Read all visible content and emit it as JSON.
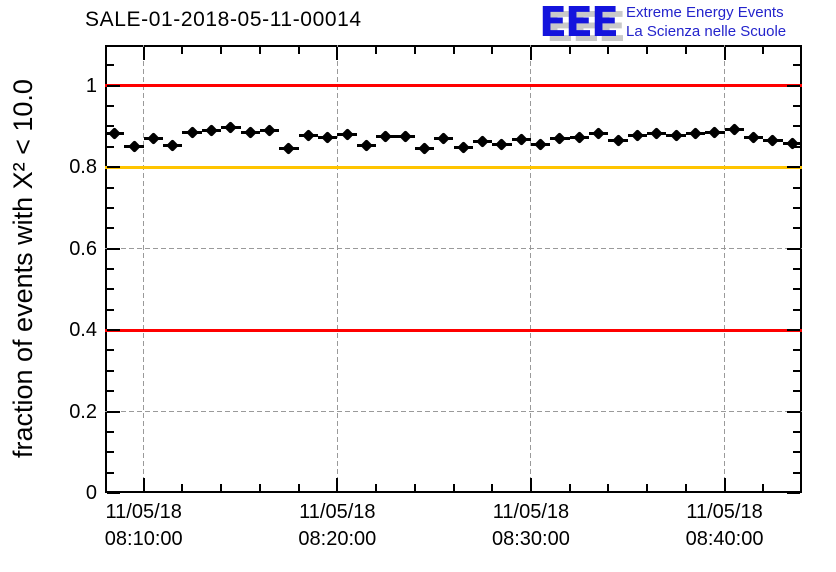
{
  "logo": {
    "acronym": "EEE",
    "line1": "Extreme Energy Events",
    "line2": "La Scienza nelle Scuole",
    "accent_color": "#1414dd",
    "shadow_color": "#c9c9c9"
  },
  "chart_data": {
    "type": "scatter",
    "title": "SALE-01-2018-05-11-00014",
    "xlabel": "",
    "ylabel": "fraction of events with X² < 10.0",
    "x_date": "11/05/18",
    "x_time_range": [
      "08:08:00",
      "08:44:00"
    ],
    "x_major_ticks": [
      "08:10:00",
      "08:20:00",
      "08:30:00",
      "08:40:00"
    ],
    "x_minor_step_s": 120,
    "ylim": [
      0,
      1.1
    ],
    "y_major_ticks": [
      "0",
      "0.2",
      "0.4",
      "0.6",
      "0.8",
      "1"
    ],
    "y_minor_step": 0.05,
    "grid": true,
    "grid_color": "#9a9a9a",
    "legend": "none",
    "reference_lines": [
      {
        "value": 1.0,
        "color": "#ff0000"
      },
      {
        "value": 0.8,
        "color": "#ffc400"
      },
      {
        "value": 0.4,
        "color": "#ff0000"
      }
    ],
    "series": [
      {
        "name": "fraction of events with X2 < 10.0",
        "marker": "filled-diamond",
        "color": "#000000",
        "x_error_s": 30,
        "points": [
          {
            "t": "08:08:30",
            "v": 0.882
          },
          {
            "t": "08:09:30",
            "v": 0.852
          },
          {
            "t": "08:10:30",
            "v": 0.871
          },
          {
            "t": "08:11:30",
            "v": 0.854
          },
          {
            "t": "08:12:30",
            "v": 0.885
          },
          {
            "t": "08:13:30",
            "v": 0.889
          },
          {
            "t": "08:14:30",
            "v": 0.898
          },
          {
            "t": "08:15:30",
            "v": 0.884
          },
          {
            "t": "08:16:30",
            "v": 0.891
          },
          {
            "t": "08:17:30",
            "v": 0.846
          },
          {
            "t": "08:18:30",
            "v": 0.879
          },
          {
            "t": "08:19:30",
            "v": 0.872
          },
          {
            "t": "08:20:30",
            "v": 0.88
          },
          {
            "t": "08:21:30",
            "v": 0.853
          },
          {
            "t": "08:22:30",
            "v": 0.875
          },
          {
            "t": "08:23:30",
            "v": 0.875
          },
          {
            "t": "08:24:30",
            "v": 0.846
          },
          {
            "t": "08:25:30",
            "v": 0.87
          },
          {
            "t": "08:26:30",
            "v": 0.848
          },
          {
            "t": "08:27:30",
            "v": 0.863
          },
          {
            "t": "08:28:30",
            "v": 0.855
          },
          {
            "t": "08:29:30",
            "v": 0.868
          },
          {
            "t": "08:30:30",
            "v": 0.855
          },
          {
            "t": "08:31:30",
            "v": 0.87
          },
          {
            "t": "08:32:30",
            "v": 0.873
          },
          {
            "t": "08:33:30",
            "v": 0.882
          },
          {
            "t": "08:34:30",
            "v": 0.865
          },
          {
            "t": "08:35:30",
            "v": 0.877
          },
          {
            "t": "08:36:30",
            "v": 0.882
          },
          {
            "t": "08:37:30",
            "v": 0.877
          },
          {
            "t": "08:38:30",
            "v": 0.882
          },
          {
            "t": "08:39:30",
            "v": 0.885
          },
          {
            "t": "08:40:30",
            "v": 0.892
          },
          {
            "t": "08:41:30",
            "v": 0.873
          },
          {
            "t": "08:42:30",
            "v": 0.865
          },
          {
            "t": "08:43:30",
            "v": 0.858
          }
        ]
      }
    ]
  }
}
